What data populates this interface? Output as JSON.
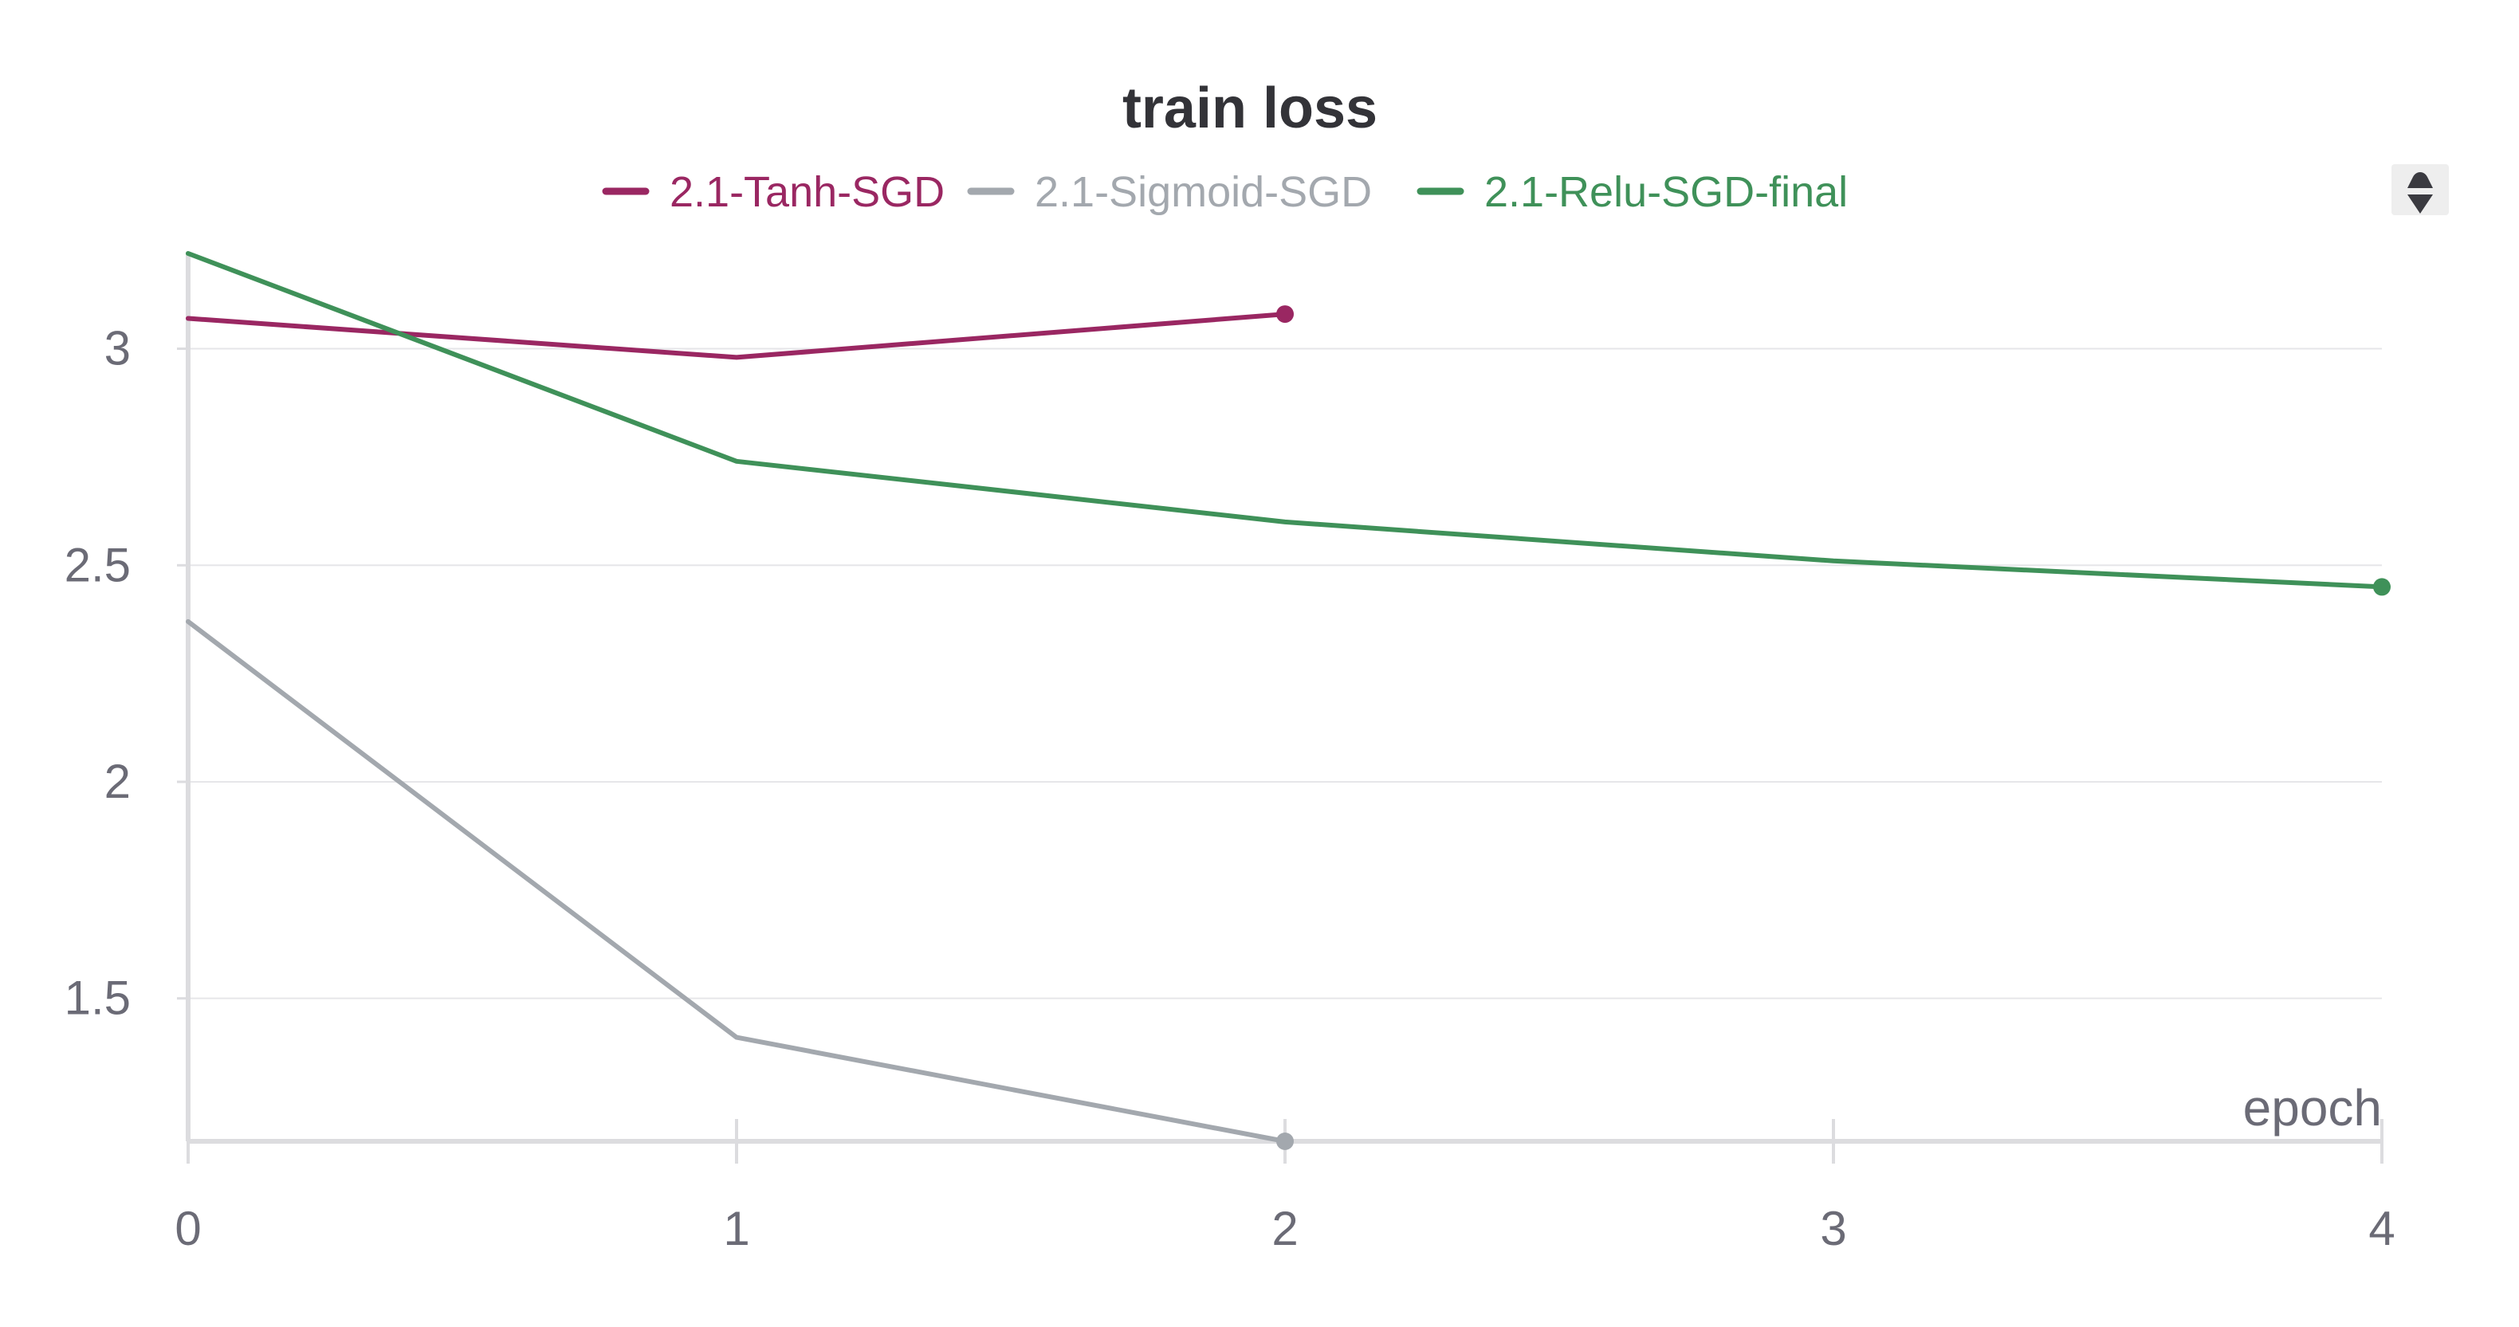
{
  "chart_data": {
    "type": "line",
    "title": "train loss",
    "xlabel": "epoch",
    "ylabel": "",
    "xlim": [
      0,
      4
    ],
    "ylim": [
      1.17,
      3.22
    ],
    "x_ticks": [
      0,
      1,
      2,
      3,
      4
    ],
    "x_tick_labels": [
      "0",
      "1",
      "2",
      "3",
      "4"
    ],
    "y_ticks": [
      1.5,
      2,
      2.5,
      3
    ],
    "y_tick_labels": [
      "1.5",
      "2",
      "2.5",
      "3"
    ],
    "grid": true,
    "legend_position": "top",
    "series": [
      {
        "name": "2.1-Tanh-SGD",
        "color": "#9a2762",
        "x": [
          0,
          1,
          2
        ],
        "y": [
          3.07,
          2.98,
          3.08
        ]
      },
      {
        "name": "2.1-Sigmoid-SGD",
        "color": "#a3a8ae",
        "x": [
          0,
          1,
          2
        ],
        "y": [
          2.37,
          1.41,
          1.17
        ]
      },
      {
        "name": "2.1-Relu-SGD-final",
        "color": "#3f9159",
        "x": [
          0,
          1,
          2,
          3,
          4
        ],
        "y": [
          3.22,
          2.74,
          2.6,
          2.51,
          2.45
        ]
      }
    ]
  },
  "ui": {
    "scroll_icon": "up-down-chevron-icon"
  }
}
